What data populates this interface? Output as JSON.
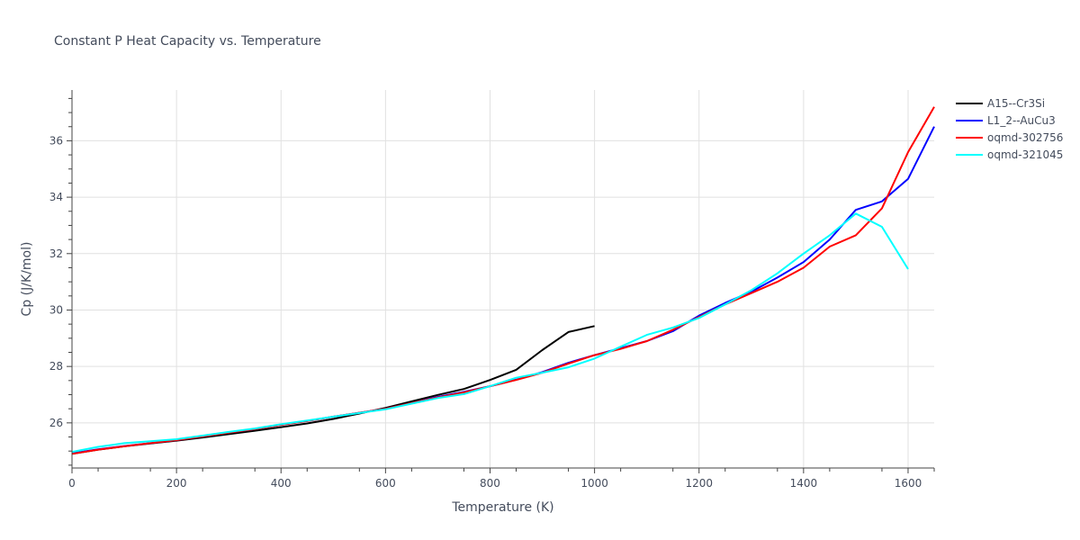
{
  "chart_data": {
    "type": "line",
    "title": "Constant P Heat Capacity vs. Temperature",
    "xlabel": "Temperature (K)",
    "ylabel": "Cp (J/K/mol)",
    "xlim": [
      0,
      1650
    ],
    "ylim": [
      24.4,
      37.8
    ],
    "xticks": [
      0,
      200,
      400,
      600,
      800,
      1000,
      1200,
      1400,
      1600
    ],
    "yticks": [
      26,
      28,
      30,
      32,
      34,
      36
    ],
    "grid": true,
    "legend_position": "top-right-outside",
    "series": [
      {
        "name": "A15--Cr3Si",
        "color": "#000000",
        "x": [
          0,
          50,
          100,
          150,
          200,
          250,
          300,
          350,
          400,
          450,
          500,
          550,
          600,
          650,
          700,
          750,
          800,
          850,
          900,
          950,
          1000
        ],
        "y": [
          24.9,
          25.05,
          25.17,
          25.27,
          25.37,
          25.48,
          25.6,
          25.72,
          25.85,
          25.98,
          26.14,
          26.33,
          26.53,
          26.76,
          26.99,
          27.2,
          27.52,
          27.88,
          28.58,
          29.22,
          29.43
        ]
      },
      {
        "name": "L1_2--AuCu3",
        "color": "#0000ff",
        "x": [
          0,
          50,
          100,
          150,
          200,
          250,
          300,
          350,
          400,
          450,
          500,
          550,
          600,
          650,
          700,
          750,
          800,
          850,
          900,
          950,
          1000,
          1050,
          1100,
          1150,
          1200,
          1250,
          1300,
          1350,
          1400,
          1450,
          1500,
          1550,
          1600,
          1650
        ],
        "y": [
          24.92,
          25.06,
          25.18,
          25.28,
          25.39,
          25.52,
          25.65,
          25.78,
          25.93,
          26.07,
          26.22,
          26.36,
          26.5,
          26.7,
          26.92,
          27.1,
          27.3,
          27.53,
          27.8,
          28.13,
          28.4,
          28.65,
          28.9,
          29.25,
          29.8,
          30.25,
          30.65,
          31.15,
          31.7,
          32.5,
          33.55,
          33.85,
          34.65,
          36.5
        ]
      },
      {
        "name": "oqmd-302756",
        "color": "#ff0000",
        "x": [
          0,
          50,
          100,
          150,
          200,
          250,
          300,
          350,
          400,
          450,
          500,
          550,
          600,
          650,
          700,
          750,
          800,
          850,
          900,
          950,
          1000,
          1050,
          1100,
          1150,
          1200,
          1250,
          1300,
          1350,
          1400,
          1450,
          1500,
          1550,
          1600,
          1650
        ],
        "y": [
          24.9,
          25.05,
          25.17,
          25.28,
          25.39,
          25.52,
          25.65,
          25.78,
          25.93,
          26.07,
          26.22,
          26.36,
          26.5,
          26.7,
          26.9,
          27.08,
          27.3,
          27.52,
          27.78,
          28.1,
          28.4,
          28.62,
          28.9,
          29.3,
          29.75,
          30.2,
          30.6,
          31.0,
          31.5,
          32.25,
          32.65,
          33.6,
          35.6,
          37.2
        ]
      },
      {
        "name": "oqmd-321045",
        "color": "#00ffff",
        "x": [
          0,
          50,
          100,
          150,
          200,
          250,
          300,
          350,
          400,
          450,
          500,
          550,
          600,
          650,
          700,
          750,
          800,
          850,
          900,
          950,
          1000,
          1050,
          1100,
          1150,
          1200,
          1250,
          1300,
          1350,
          1400,
          1450,
          1500,
          1550,
          1600
        ],
        "y": [
          24.97,
          25.15,
          25.28,
          25.35,
          25.42,
          25.55,
          25.68,
          25.8,
          25.95,
          26.08,
          26.22,
          26.35,
          26.48,
          26.68,
          26.88,
          27.02,
          27.3,
          27.6,
          27.78,
          27.97,
          28.28,
          28.7,
          29.12,
          29.38,
          29.72,
          30.2,
          30.7,
          31.3,
          32.0,
          32.65,
          33.42,
          32.95,
          31.45
        ]
      }
    ]
  }
}
